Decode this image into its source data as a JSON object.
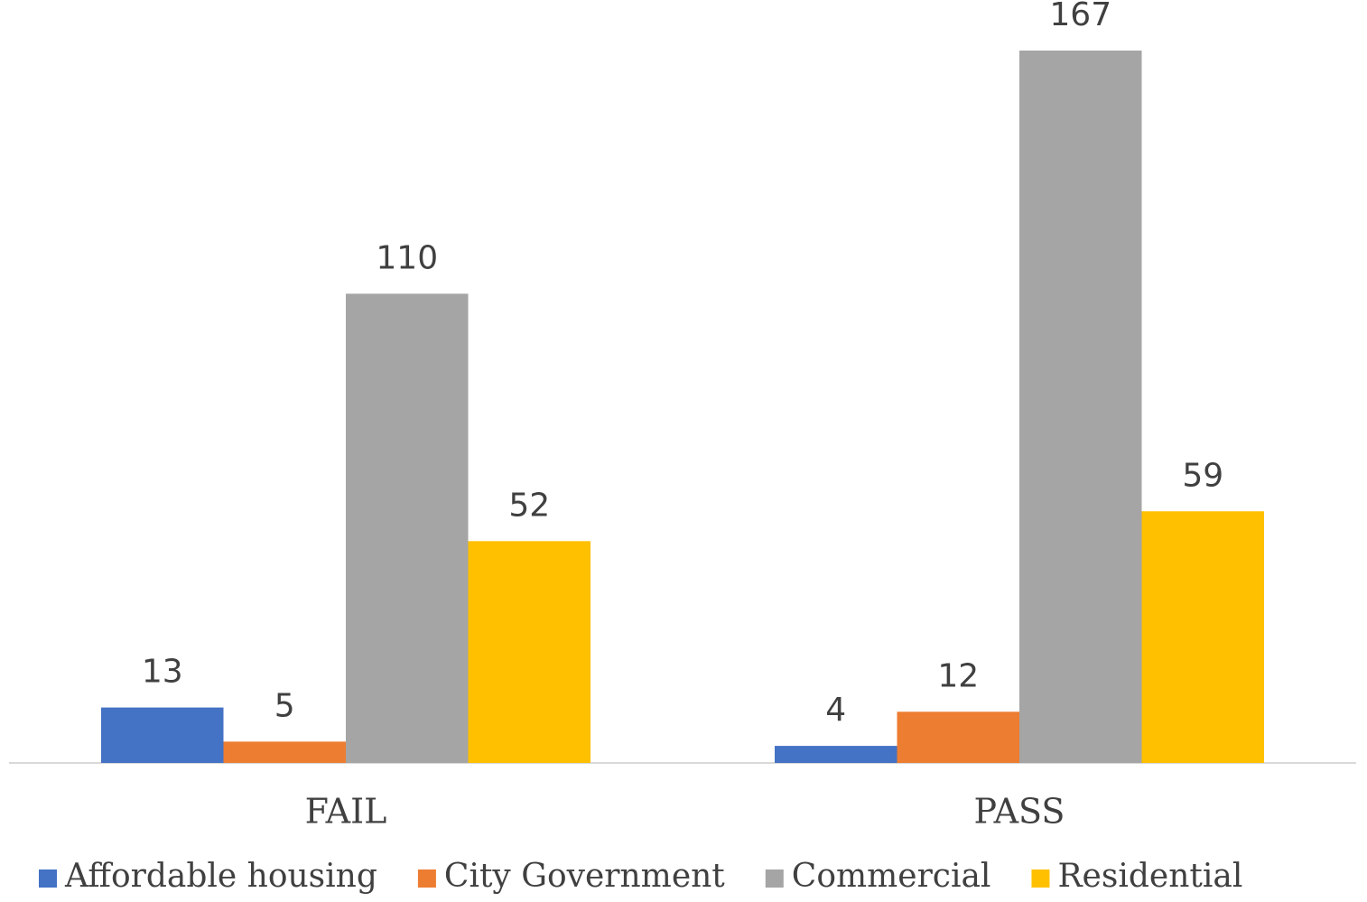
{
  "chart_data": {
    "type": "bar",
    "categories": [
      "FAIL",
      "PASS"
    ],
    "series": [
      {
        "name": "Affordable housing",
        "color": "#4472c4",
        "values": [
          13,
          4
        ]
      },
      {
        "name": "City Government",
        "color": "#ed7d31",
        "values": [
          5,
          12
        ]
      },
      {
        "name": "Commercial",
        "color": "#a5a5a5",
        "values": [
          110,
          167
        ]
      },
      {
        "name": "Residential",
        "color": "#ffc000",
        "values": [
          52,
          59
        ]
      }
    ],
    "ylim": [
      0,
      167
    ],
    "legend": "bottom"
  }
}
